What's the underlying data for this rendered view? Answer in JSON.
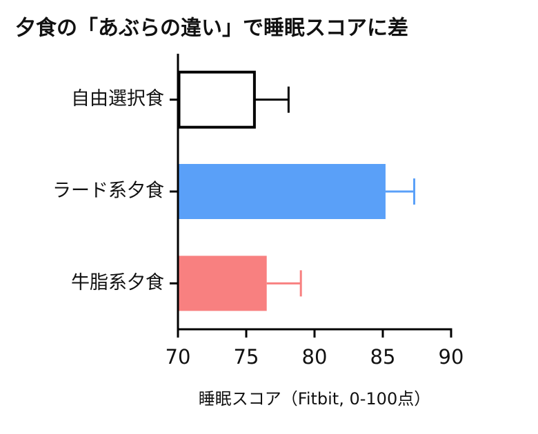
{
  "chart_data": {
    "type": "barh",
    "title": "夕食の「あぶらの違い」で睡眠スコアに差",
    "x_label": "睡眠スコア（Fitbit, 0-100点）",
    "categories": [
      "自由選択食",
      "ラード系夕食",
      "牛脂系夕食"
    ],
    "values": [
      75.6,
      85.2,
      76.5
    ],
    "errors": [
      2.5,
      2.1,
      2.5
    ],
    "colors": [
      "#ffffff",
      "#5aa0f8",
      "#f88080"
    ],
    "edge_colors": [
      "#000000",
      "#5aa0f8",
      "#f88080"
    ],
    "xlim": [
      70,
      90
    ],
    "xticks": [
      70,
      75,
      80,
      85,
      90
    ]
  }
}
